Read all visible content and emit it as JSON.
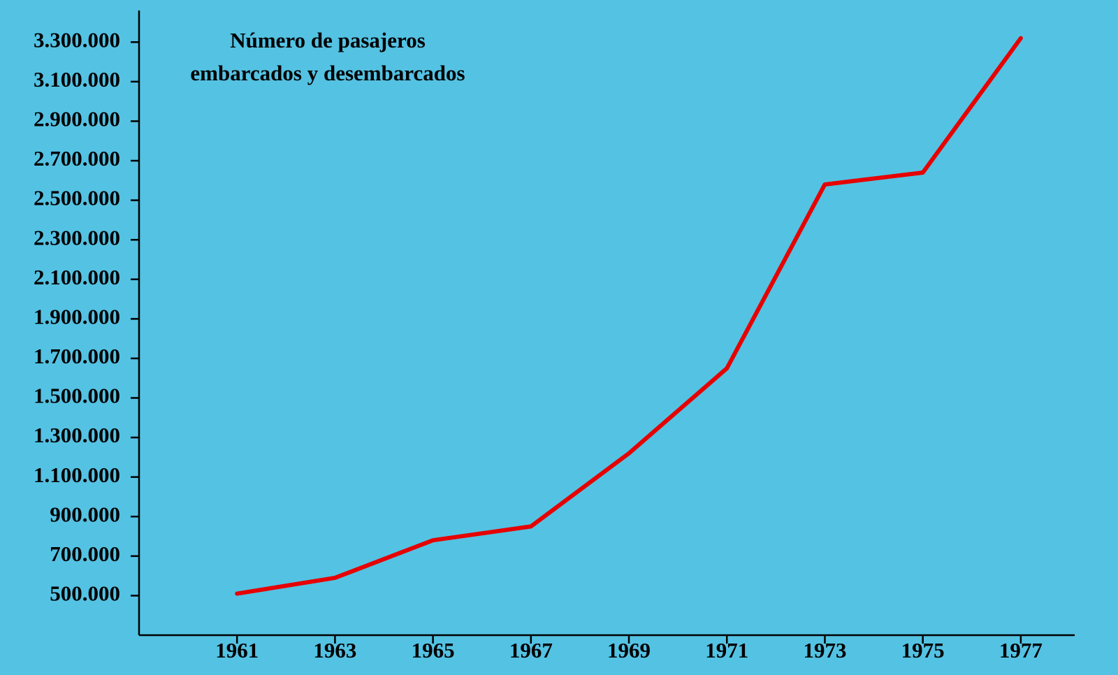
{
  "chart_data": {
    "type": "line",
    "title": [
      "Número de pasajeros",
      "embarcados y desembarcados"
    ],
    "x": [
      1961,
      1963,
      1965,
      1967,
      1969,
      1971,
      1973,
      1975,
      1977
    ],
    "series": [
      {
        "color": "#e60000",
        "values": [
          510000,
          590000,
          780000,
          850000,
          1220000,
          1650000,
          2580000,
          2640000,
          3320000
        ]
      }
    ],
    "xlim": [
      1959,
      1978.1
    ],
    "xticks": [
      1961,
      1963,
      1965,
      1967,
      1969,
      1971,
      1973,
      1975,
      1977
    ],
    "ylim": [
      300000,
      3460000
    ],
    "yticks": [
      {
        "value": 500000,
        "label": "500.000"
      },
      {
        "value": 700000,
        "label": "700.000"
      },
      {
        "value": 900000,
        "label": "900.000"
      },
      {
        "value": 1100000,
        "label": "1.100.000"
      },
      {
        "value": 1300000,
        "label": "1.300.000"
      },
      {
        "value": 1500000,
        "label": "1.500.000"
      },
      {
        "value": 1700000,
        "label": "1.700.000"
      },
      {
        "value": 1900000,
        "label": "1.900.000"
      },
      {
        "value": 2100000,
        "label": "2.100.000"
      },
      {
        "value": 2300000,
        "label": "2.300.000"
      },
      {
        "value": 2500000,
        "label": "2.500.000"
      },
      {
        "value": 2700000,
        "label": "2.700.000"
      },
      {
        "value": 2900000,
        "label": "2.900.000"
      },
      {
        "value": 3100000,
        "label": "3.100.000"
      },
      {
        "value": 3300000,
        "label": "3.300.000"
      }
    ],
    "grid": false
  }
}
